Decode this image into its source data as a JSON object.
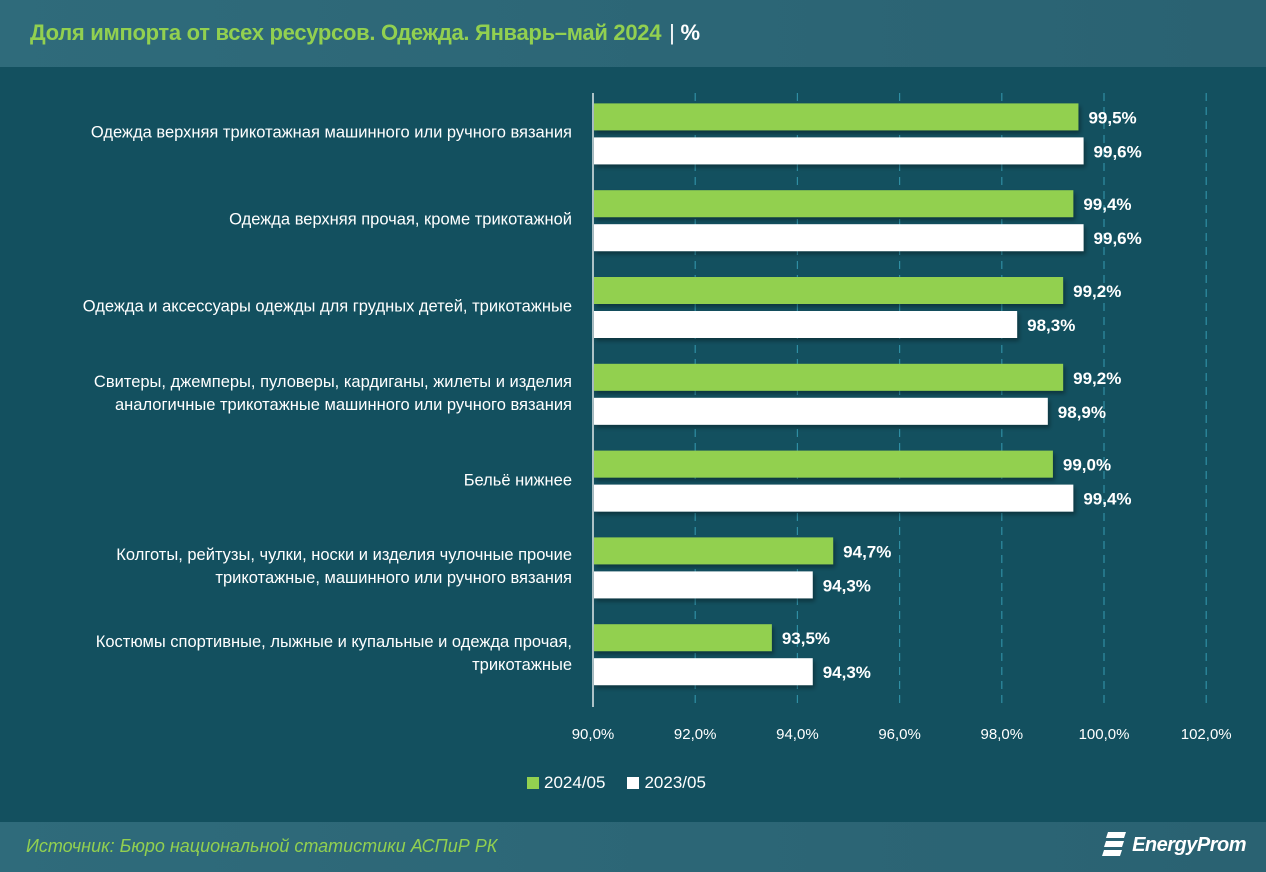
{
  "header": {
    "title": "Доля импорта от всех ресурсов. Одежда. Январь–май 2024",
    "separator": "|",
    "unit": "%"
  },
  "footer": {
    "source": "Источник: Бюро национальной статистики АСПиР РК",
    "logo_text": "EnergyProm"
  },
  "colors": {
    "series_2024": "#92d050",
    "series_2023": "#ffffff",
    "background": "#13505f",
    "title": "#92d050"
  },
  "chart_data": {
    "type": "bar",
    "orientation": "horizontal",
    "title": "Доля импорта от всех ресурсов. Одежда. Январь–май 2024",
    "unit": "%",
    "categories": [
      "Одежда верхняя трикотажная машинного или ручного вязания",
      "Одежда верхняя прочая, кроме трикотажной",
      "Одежда и аксессуары одежды для грудных детей, трикотажные",
      "Свитеры, джемперы, пуловеры, кардиганы, жилеты и изделия аналогичные трикотажные машинного или ручного вязания",
      "Бельё нижнее",
      "Колготы, рейтузы, чулки, носки и изделия чулочные прочие трикотажные, машинного или ручного вязания",
      "Костюмы спортивные, лыжные и купальные и одежда прочая, трикотажные"
    ],
    "series": [
      {
        "name": "2024/05",
        "values": [
          99.5,
          99.4,
          99.2,
          99.2,
          99.0,
          94.7,
          93.5
        ],
        "labels": [
          "99,5%",
          "99,4%",
          "99,2%",
          "99,2%",
          "99,0%",
          "94,7%",
          "93,5%"
        ]
      },
      {
        "name": "2023/05",
        "values": [
          99.6,
          99.6,
          98.3,
          98.9,
          99.4,
          94.3,
          94.3
        ],
        "labels": [
          "99,6%",
          "99,6%",
          "98,3%",
          "98,9%",
          "99,4%",
          "94,3%",
          "94,3%"
        ]
      }
    ],
    "xlim": [
      90,
      102
    ],
    "xticks": [
      90,
      92,
      94,
      96,
      98,
      100,
      102
    ],
    "xtick_labels": [
      "90,0%",
      "92,0%",
      "94,0%",
      "96,0%",
      "98,0%",
      "100,0%",
      "102,0%"
    ],
    "grid": "vertical dashed",
    "legend": "bottom"
  }
}
